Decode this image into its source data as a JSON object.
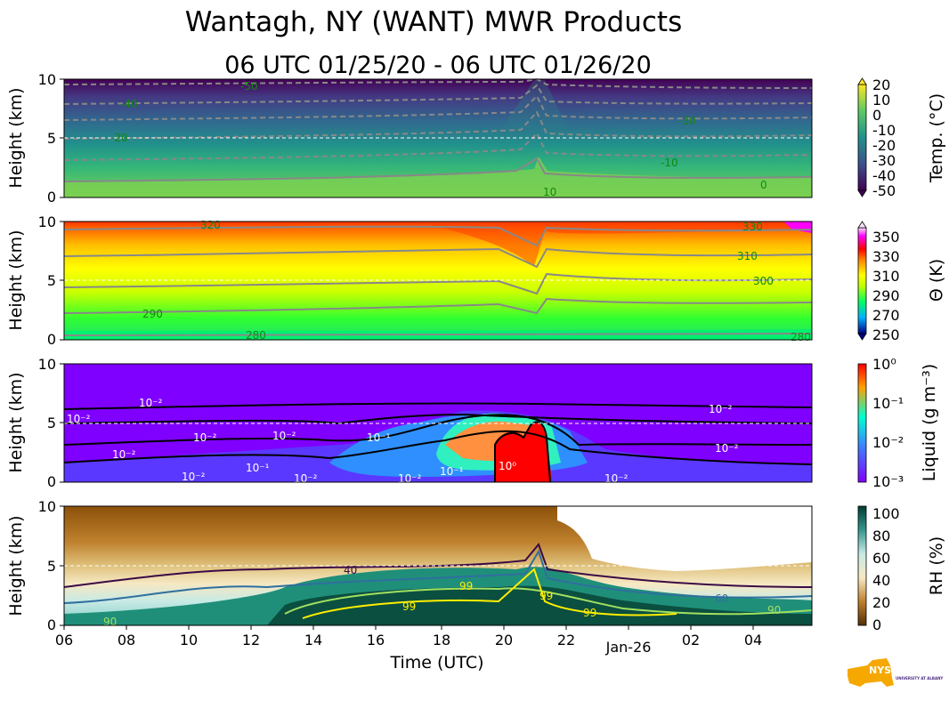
{
  "title": "Wantagh, NY (WANT) MWR Products",
  "subtitle": "06 UTC 01/25/20 - 06 UTC 01/26/20",
  "chart_data": [
    {
      "type": "heatmap",
      "variable": "temperature",
      "ylabel": "Height (km)",
      "ylim": [
        0,
        10
      ],
      "yticks": [
        "0",
        "5",
        "10"
      ],
      "colorbar_label": "Temp. (°C)",
      "colorbar_ticks": [
        "20",
        "10",
        "0",
        "-10",
        "-20",
        "-30",
        "-40",
        "-50"
      ],
      "colormap": [
        "#440154",
        "#3b528b",
        "#21918c",
        "#5ec962",
        "#fde725"
      ],
      "contour_labels": [
        "-50",
        "-40",
        "-30",
        "-20",
        "-10",
        "0",
        "10"
      ]
    },
    {
      "type": "heatmap",
      "variable": "potential temperature",
      "ylabel": "Height (km)",
      "ylim": [
        0,
        10
      ],
      "yticks": [
        "0",
        "5",
        "10"
      ],
      "colorbar_label": "Θ (K)",
      "colorbar_ticks": [
        "350",
        "330",
        "310",
        "290",
        "270",
        "250"
      ],
      "colormap": [
        "#000080",
        "#00c0ff",
        "#00ff40",
        "#ffff00",
        "#ff8000",
        "#ff0000",
        "#ff00ff",
        "#ffffff"
      ],
      "contour_labels": [
        "280",
        "290",
        "300",
        "310",
        "320",
        "330",
        "280"
      ]
    },
    {
      "type": "heatmap",
      "variable": "liquid water",
      "ylabel": "Height (km)",
      "ylim": [
        0,
        10
      ],
      "yticks": [
        "0",
        "5",
        "10"
      ],
      "colorbar_label": "Liquid (g m⁻³)",
      "colorbar_ticks": [
        "10⁰",
        "10⁻¹",
        "10⁻²",
        "10⁻³"
      ],
      "colormap": [
        "#7f00ff",
        "#3f7fff",
        "#00ffd0",
        "#ffa000",
        "#ff0000"
      ],
      "contour_labels": [
        "10⁻²",
        "10⁻²",
        "10⁻²",
        "10⁻²",
        "10⁻¹",
        "10⁻²",
        "10⁻²",
        "10⁻¹",
        "10⁻²",
        "10⁻²",
        "10⁻¹",
        "10⁻²",
        "10⁻²",
        "10⁻²",
        "10⁰"
      ]
    },
    {
      "type": "heatmap",
      "variable": "relative humidity",
      "ylabel": "Height (km)",
      "xlabel": "Time (UTC)",
      "ylim": [
        0,
        10
      ],
      "yticks": [
        "0",
        "5",
        "10"
      ],
      "x_tick_labels": [
        "06",
        "08",
        "10",
        "12",
        "14",
        "16",
        "18",
        "20",
        "22",
        "Jan-26",
        "02",
        "04"
      ],
      "colorbar_label": "RH (%)",
      "colorbar_ticks": [
        "100",
        "80",
        "60",
        "40",
        "20",
        "0"
      ],
      "colormap": [
        "#543005",
        "#bf812d",
        "#f6e8c3",
        "#c7eae5",
        "#35978f",
        "#003c30"
      ],
      "contour_labels": [
        "40",
        "60",
        "90",
        "90",
        "99",
        "99",
        "99",
        "99"
      ]
    }
  ],
  "logo": {
    "text": "NYS Mesonet",
    "subtext": "UNIVERSITY AT ALBANY"
  }
}
